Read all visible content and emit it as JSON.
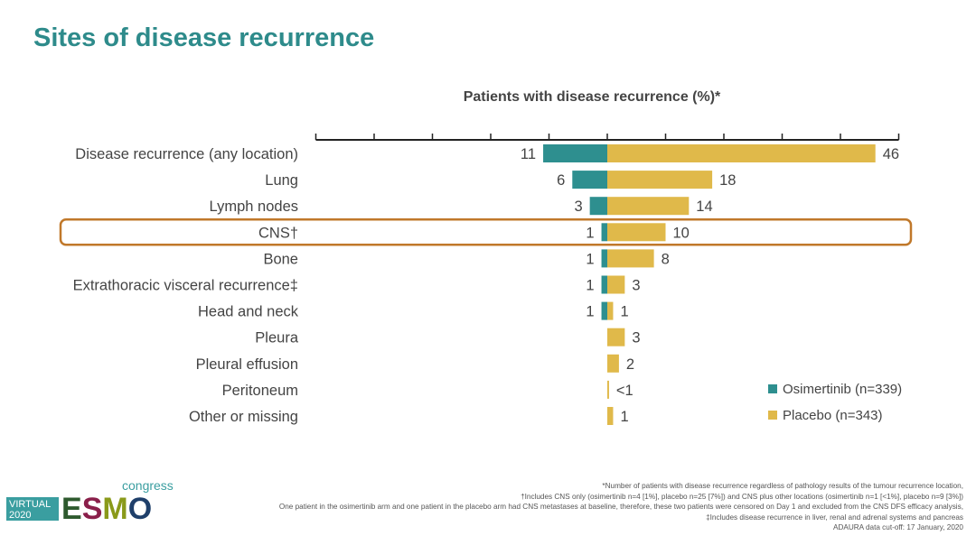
{
  "title": "Sites of disease recurrence",
  "chart_data": {
    "type": "bar",
    "orientation": "horizontal-diverging",
    "title": "Patients with disease recurrence (%)*",
    "xlim": [
      -50,
      50
    ],
    "tick_step": 10,
    "categories": [
      "Disease recurrence (any location)",
      "Lung",
      "Lymph nodes",
      "CNS†",
      "Bone",
      "Extrathoracic visceral recurrence‡",
      "Head and neck",
      "Pleura",
      "Pleural effusion",
      "Peritoneum",
      "Other or missing"
    ],
    "highlighted_category": "CNS†",
    "series": [
      {
        "name": "Osimertinib (n=339)",
        "color": "#2e8f8f",
        "values": [
          11,
          6,
          3,
          1,
          1,
          1,
          1,
          0,
          0,
          0,
          0
        ],
        "labels": [
          "11",
          "6",
          "3",
          "1",
          "1",
          "1",
          "1",
          "",
          "",
          "",
          ""
        ]
      },
      {
        "name": "Placebo (n=343)",
        "color": "#e0b94a",
        "values": [
          46,
          18,
          14,
          10,
          8,
          3,
          1,
          3,
          2,
          0.3,
          1
        ],
        "labels": [
          "46",
          "18",
          "14",
          "10",
          "8",
          "3",
          "1",
          "3",
          "2",
          "<1",
          "1"
        ]
      }
    ],
    "legend_position": "bottom-right"
  },
  "footnotes": [
    "*Number of patients with disease recurrence regardless of pathology results of the tumour recurrence location,",
    "†Includes CNS only (osimertinib n=4 [1%], placebo n=25 [7%]) and CNS plus other locations (osimertinib n=1 [<1%], placebo n=9 [3%])",
    "One patient in the osimertinib arm and one patient in the placebo arm had CNS metastases at baseline, therefore, these two patients were censored on Day 1 and excluded from the CNS DFS efficacy analysis,",
    "‡Includes disease recurrence in liver, renal and adrenal systems and pancreas",
    "ADAURA data cut-off: 17 January, 2020"
  ],
  "logo": {
    "virtual": "VIRTUAL",
    "year": "2020",
    "brand": "ESMO",
    "suffix": "congress"
  }
}
